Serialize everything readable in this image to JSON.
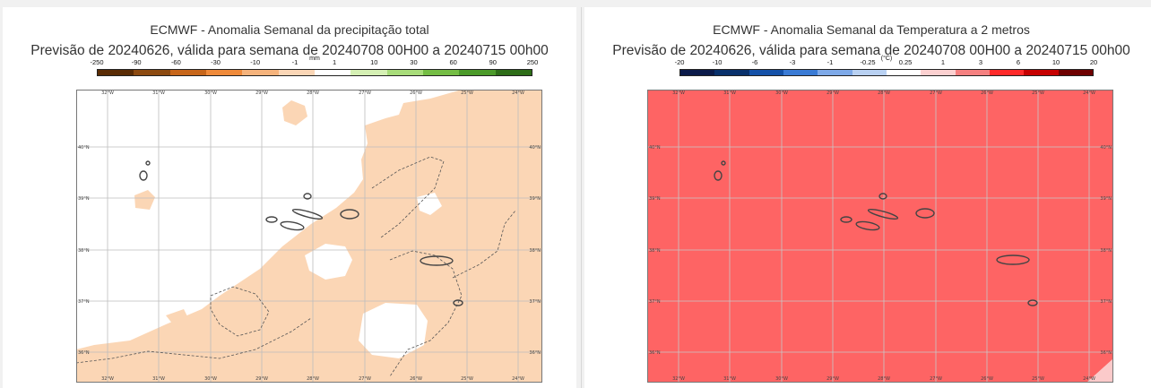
{
  "panels": [
    {
      "title": "ECMWF - Anomalia Semanal da precipitação total",
      "subtitle": "Previsão de 20240626, válida para semana de 20240708 00H00 a 20240715 00h00",
      "unit": "mm",
      "colorbar_labels": [
        "-250",
        "-90",
        "-60",
        "-30",
        "-10",
        "-1",
        "1",
        "10",
        "30",
        "60",
        "90",
        "250"
      ],
      "colorbar_colors": [
        "#5a2c05",
        "#8c4a10",
        "#c7661a",
        "#ef8a3a",
        "#f5b37c",
        "#fad6b6",
        "#ffffff",
        "#d5f0b4",
        "#a8dc7a",
        "#74bd44",
        "#4b9a2a",
        "#2e6d18"
      ],
      "field_color": "#fbd6b5",
      "background_color": "#ffffff"
    },
    {
      "title": "ECMWF - Anomalia Semanal da Temperatura a 2 metros",
      "subtitle": "Previsão de 20240626, válida para semana de 20240708 00H00 a 20240715 00h00",
      "unit": "(°C)",
      "colorbar_labels": [
        "-20",
        "-10",
        "-6",
        "-3",
        "-1",
        "-0.25",
        "0.25",
        "1",
        "3",
        "6",
        "10",
        "20"
      ],
      "colorbar_colors": [
        "#0b1a4a",
        "#08306b",
        "#1451a8",
        "#3a7bd5",
        "#7ea9e8",
        "#b9d1f2",
        "#ffffff",
        "#fbd0d0",
        "#f58080",
        "#ff2a2a",
        "#c60000",
        "#6e0000"
      ],
      "field_color": "#fe6464",
      "background_color": "#fe6464"
    }
  ],
  "map": {
    "lon_labels": [
      "32°W",
      "31°W",
      "30°W",
      "29°W",
      "28°W",
      "27°W",
      "26°W",
      "25°W",
      "24°W"
    ],
    "lat_labels": [
      "40°N",
      "39°N",
      "38°N",
      "37°N",
      "36°N"
    ]
  }
}
